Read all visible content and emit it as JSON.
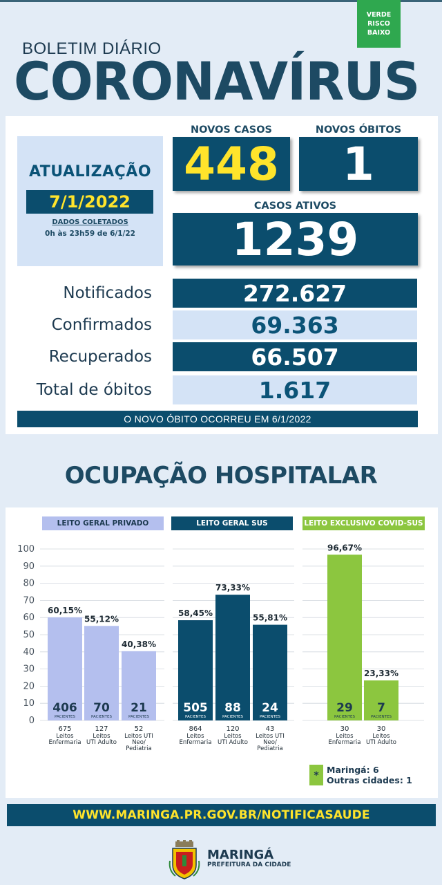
{
  "risk_badge": {
    "line1": "VERDE",
    "line2": "RISCO",
    "line3": "BAIXO",
    "color": "#2fa84f"
  },
  "header": {
    "subtitle": "BOLETIM DIÁRIO",
    "title": "CORONAVÍRUS"
  },
  "update": {
    "title": "ATUALIZAÇÃO",
    "date": "7/1/2022",
    "collected_label": "DADOS COLETADOS",
    "collected_range": "0h às 23h59 de 6/1/22"
  },
  "new_cases": {
    "label": "NOVOS CASOS",
    "value": "448"
  },
  "new_deaths": {
    "label": "NOVOS ÓBITOS",
    "value": "1"
  },
  "active_cases": {
    "label": "CASOS ATIVOS",
    "value": "1239"
  },
  "stats": [
    {
      "label": "Notificados",
      "value": "272.627"
    },
    {
      "label": "Confirmados",
      "value": "69.363"
    },
    {
      "label": "Recuperados",
      "value": "66.507"
    },
    {
      "label": "Total de óbitos",
      "value": "1.617"
    }
  ],
  "death_note": "O NOVO ÓBITO OCORREU EM 6/1/2022",
  "hospital_title": "OCUPAÇÃO HOSPITALAR",
  "chart_data": {
    "type": "bar",
    "ylim": [
      0,
      100
    ],
    "yticks": [
      "100",
      "90",
      "80",
      "70",
      "60",
      "50",
      "40",
      "30",
      "20",
      "10",
      "0"
    ],
    "grid": true,
    "patients_label": "PACIENTES",
    "groups": [
      {
        "name": "LEITO GERAL PRIVADO",
        "color": "#b4bfee",
        "header_color": "#b4bfee",
        "header_text_color": "#1d3a50",
        "patients_color": "#1d3a50",
        "bars": [
          {
            "percent": 60.15,
            "percent_label": "60,15%",
            "patients": "406",
            "beds": "675",
            "bed_type": "Leitos Enfermaria"
          },
          {
            "percent": 55.12,
            "percent_label": "55,12%",
            "patients": "70",
            "beds": "127",
            "bed_type": "Leitos UTI Adulto"
          },
          {
            "percent": 40.38,
            "percent_label": "40,38%",
            "patients": "21",
            "beds": "52",
            "bed_type": "Leitos UTI Neo/ Pediatria"
          }
        ]
      },
      {
        "name": "LEITO GERAL SUS",
        "color": "#0b4d6d",
        "header_color": "#0b4d6d",
        "header_text_color": "#ffffff",
        "patients_color": "#ffffff",
        "bars": [
          {
            "percent": 58.45,
            "percent_label": "58,45%",
            "patients": "505",
            "beds": "864",
            "bed_type": "Leitos Enfermaria"
          },
          {
            "percent": 73.33,
            "percent_label": "73,33%",
            "patients": "88",
            "beds": "120",
            "bed_type": "Leitos UTI Adulto"
          },
          {
            "percent": 55.81,
            "percent_label": "55,81%",
            "patients": "24",
            "beds": "43",
            "bed_type": "Leitos UTI Neo/ Pediatria"
          }
        ]
      },
      {
        "name": "LEITO EXCLUSIVO COVID-SUS",
        "color": "#8cc63f",
        "header_color": "#8cc63f",
        "header_text_color": "#ffffff",
        "patients_color": "#1d3a50",
        "bars": [
          {
            "percent": 96.67,
            "percent_label": "96,67%",
            "patients": "29",
            "beds": "30",
            "bed_type": "Leitos Enfermaria"
          },
          {
            "percent": 23.33,
            "percent_label": "23,33%",
            "patients": "7",
            "beds": "30",
            "bed_type": "Leitos UTI Adulto"
          }
        ]
      }
    ]
  },
  "legend": {
    "symbol": "*",
    "line1": "Maringá: 6",
    "line2": "Outras cidades: 1"
  },
  "footer": {
    "url": "WWW.MARINGA.PR.GOV.BR/NOTIFICASAUDE",
    "city": "MARINGÁ",
    "org": "PREFEITURA DA CIDADE"
  }
}
